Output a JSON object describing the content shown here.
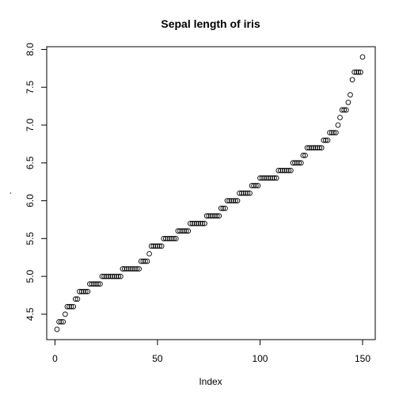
{
  "chart_data": {
    "type": "scatter",
    "title": "Sepal length of iris",
    "xlabel": "Index",
    "ylabel": ".",
    "xlim": [
      1,
      150
    ],
    "ylim": [
      4.3,
      7.9
    ],
    "x_ticks": [
      "0",
      "50",
      "100",
      "150"
    ],
    "y_ticks": [
      "4.5",
      "5.0",
      "5.5",
      "6.0",
      "6.5",
      "7.0",
      "7.5",
      "8.0"
    ],
    "grid": false,
    "marker": "open-circle",
    "values": [
      4.3,
      4.4,
      4.4,
      4.4,
      4.5,
      4.6,
      4.6,
      4.6,
      4.6,
      4.7,
      4.7,
      4.8,
      4.8,
      4.8,
      4.8,
      4.8,
      4.9,
      4.9,
      4.9,
      4.9,
      4.9,
      4.9,
      5.0,
      5.0,
      5.0,
      5.0,
      5.0,
      5.0,
      5.0,
      5.0,
      5.0,
      5.0,
      5.1,
      5.1,
      5.1,
      5.1,
      5.1,
      5.1,
      5.1,
      5.1,
      5.1,
      5.2,
      5.2,
      5.2,
      5.2,
      5.3,
      5.4,
      5.4,
      5.4,
      5.4,
      5.4,
      5.4,
      5.5,
      5.5,
      5.5,
      5.5,
      5.5,
      5.5,
      5.5,
      5.6,
      5.6,
      5.6,
      5.6,
      5.6,
      5.6,
      5.7,
      5.7,
      5.7,
      5.7,
      5.7,
      5.7,
      5.7,
      5.7,
      5.8,
      5.8,
      5.8,
      5.8,
      5.8,
      5.8,
      5.8,
      5.9,
      5.9,
      5.9,
      6.0,
      6.0,
      6.0,
      6.0,
      6.0,
      6.0,
      6.1,
      6.1,
      6.1,
      6.1,
      6.1,
      6.1,
      6.2,
      6.2,
      6.2,
      6.2,
      6.3,
      6.3,
      6.3,
      6.3,
      6.3,
      6.3,
      6.3,
      6.3,
      6.3,
      6.4,
      6.4,
      6.4,
      6.4,
      6.4,
      6.4,
      6.4,
      6.5,
      6.5,
      6.5,
      6.5,
      6.5,
      6.6,
      6.6,
      6.7,
      6.7,
      6.7,
      6.7,
      6.7,
      6.7,
      6.7,
      6.7,
      6.8,
      6.8,
      6.8,
      6.9,
      6.9,
      6.9,
      6.9,
      7.0,
      7.1,
      7.2,
      7.2,
      7.2,
      7.3,
      7.4,
      7.6,
      7.7,
      7.7,
      7.7,
      7.7,
      7.9
    ]
  }
}
